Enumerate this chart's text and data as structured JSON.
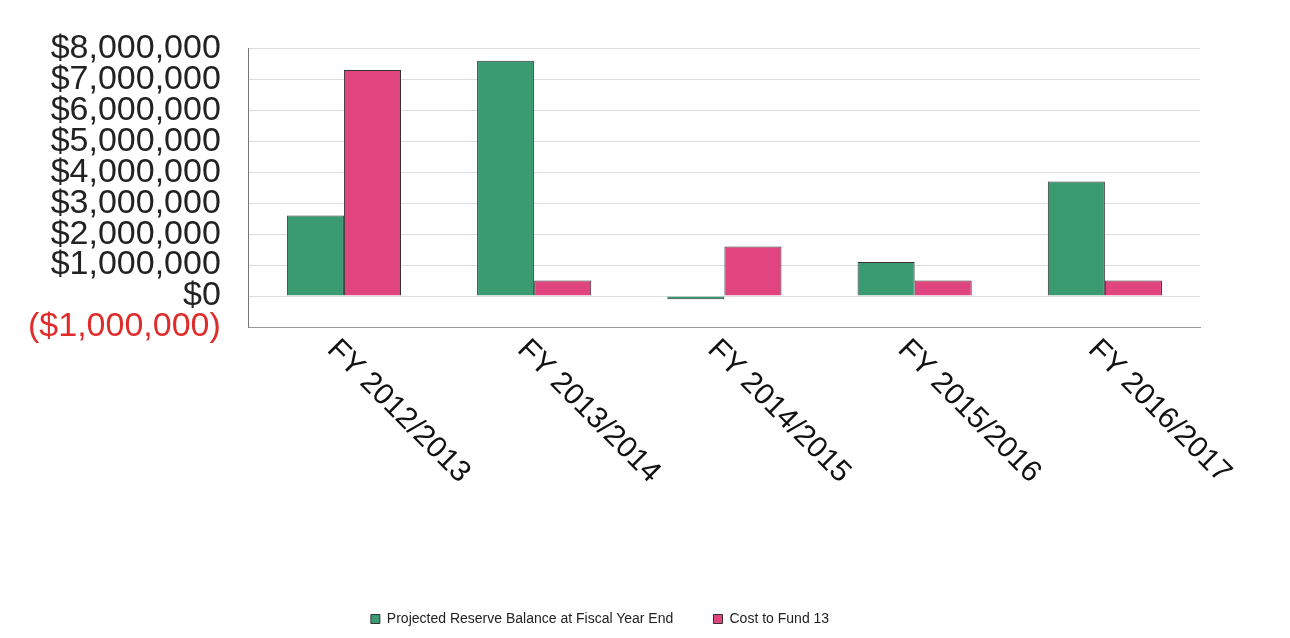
{
  "chart_data": {
    "type": "bar",
    "categories": [
      "FY 2012/2013",
      "FY 2013/2014",
      "FY 2014/2015",
      "FY 2015/2016",
      "FY 2016/2017"
    ],
    "series": [
      {
        "name": "Projected Reserve Balance at Fiscal Year End",
        "color": "#3a9a72",
        "values": [
          2600000,
          7600000,
          -100000,
          1100000,
          3700000
        ]
      },
      {
        "name": "Cost to Fund 13",
        "color": "#e0457f",
        "values": [
          7300000,
          500000,
          1600000,
          500000,
          500000
        ]
      }
    ],
    "ylim": [
      -1000000,
      8000000
    ],
    "yticks": [
      {
        "value": -1000000,
        "label": "($1,000,000)"
      },
      {
        "value": 0,
        "label": "$0"
      },
      {
        "value": 1000000,
        "label": "$1,000,000"
      },
      {
        "value": 2000000,
        "label": "$2,000,000"
      },
      {
        "value": 3000000,
        "label": "$3,000,000"
      },
      {
        "value": 4000000,
        "label": "$4,000,000"
      },
      {
        "value": 5000000,
        "label": "$5,000,000"
      },
      {
        "value": 6000000,
        "label": "$6,000,000"
      },
      {
        "value": 7000000,
        "label": "$7,000,000"
      },
      {
        "value": 8000000,
        "label": "$8,000,000"
      }
    ],
    "grid": "y",
    "legend": "bottom"
  }
}
